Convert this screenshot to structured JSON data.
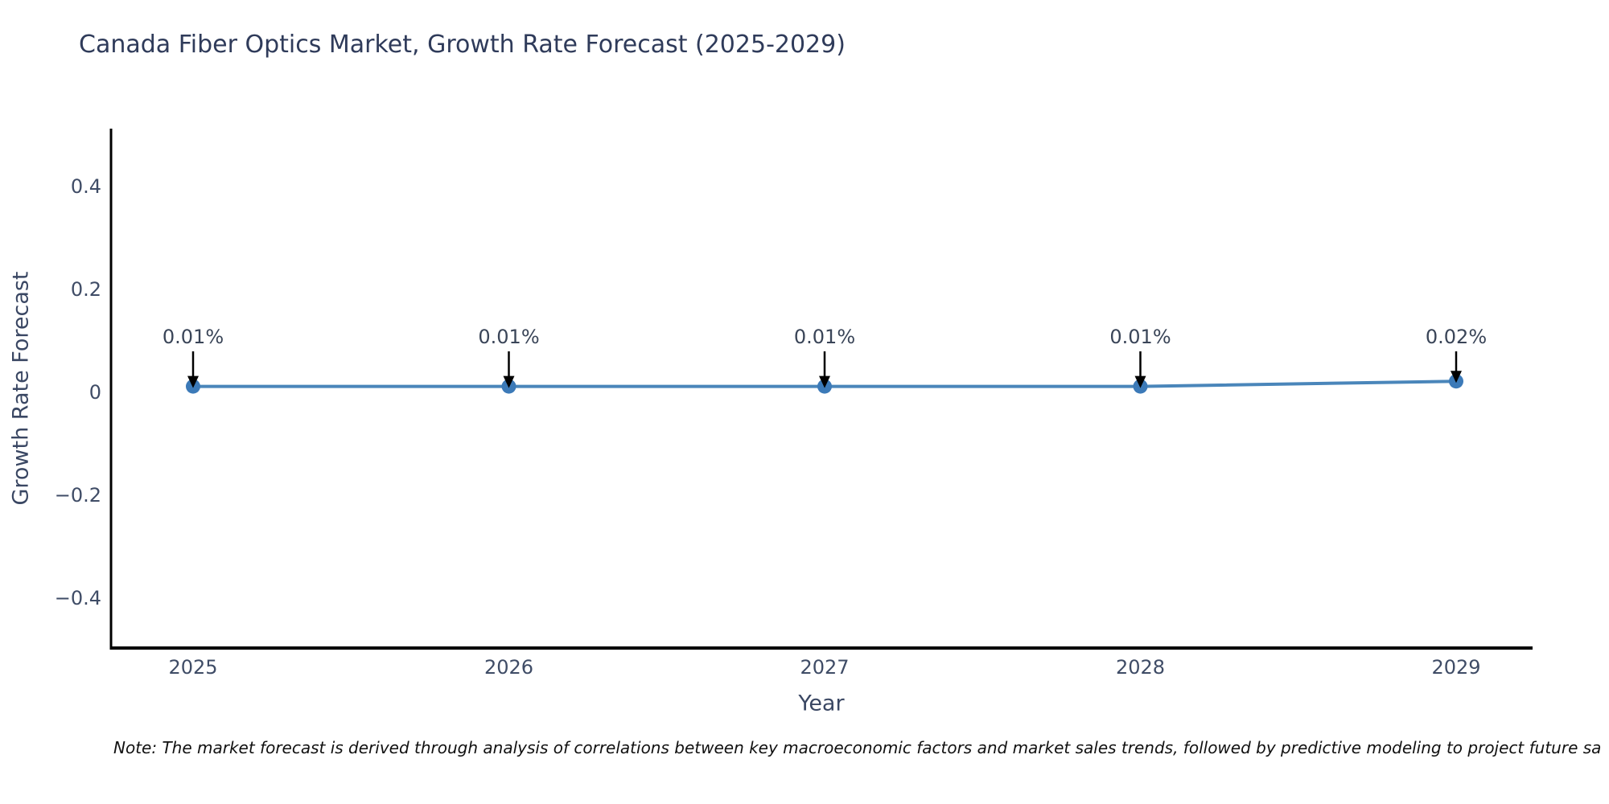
{
  "title": "Canada Fiber Optics Market, Growth Rate Forecast (2025-2029)",
  "note": "Note: The market forecast is derived through analysis of correlations between key macroeconomic factors and market sales trends, followed by predictive modeling to project future sa",
  "colors": {
    "title_text": "#2f3b5a",
    "axis_text": "#3a4763",
    "tick_text": "#3f4c66",
    "point_label_text": "#3a4558",
    "spine": "#000000",
    "annotation_arrow": "#000000",
    "line": "#4a86ba",
    "marker": "#3c7ab8",
    "background": "#ffffff"
  },
  "chart_data": {
    "type": "line",
    "title": "Canada Fiber Optics Market, Growth Rate Forecast (2025-2029)",
    "xlabel": "Year",
    "ylabel": "Growth Rate Forecast",
    "x": [
      2025,
      2026,
      2027,
      2028,
      2029
    ],
    "series": [
      {
        "name": "Growth Rate Forecast",
        "values": [
          0.01,
          0.01,
          0.01,
          0.01,
          0.02
        ],
        "point_labels": [
          "0.01%",
          "0.01%",
          "0.01%",
          "0.01%",
          "0.02%"
        ]
      }
    ],
    "yticks": [
      0.4,
      0.2,
      0,
      -0.2,
      -0.4
    ],
    "ytick_labels": [
      "0.4",
      "0.2",
      "0",
      "−0.2",
      "−0.4"
    ],
    "xtick_labels": [
      "2025",
      "2026",
      "2027",
      "2028",
      "2029"
    ],
    "ylim": [
      -0.5,
      0.5
    ],
    "grid": false,
    "legend": "none",
    "annotations": "down-arrows from percentage labels to each data point"
  }
}
